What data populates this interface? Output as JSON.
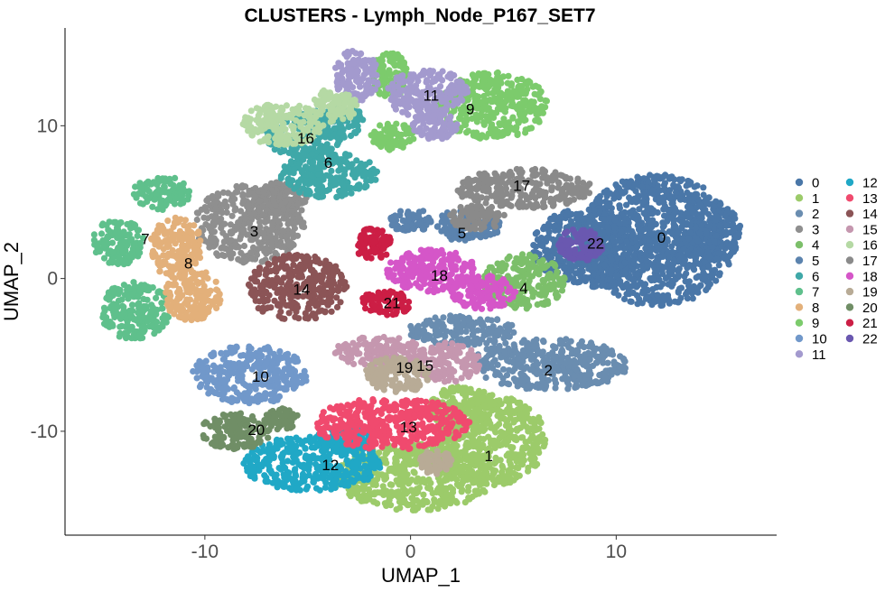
{
  "chart_data": {
    "type": "scatter",
    "title": "CLUSTERS - Lymph_Node_P167_SET7",
    "xlabel": "UMAP_1",
    "ylabel": "UMAP_2",
    "xlim": [
      -16.8,
      17.8
    ],
    "ylim": [
      -16.8,
      16.4
    ],
    "xticks": [
      -10,
      0,
      10
    ],
    "xtick_labels": [
      "-10",
      "0",
      "10"
    ],
    "yticks": [
      -10,
      0,
      10
    ],
    "ytick_labels": [
      "-10",
      "0",
      "10"
    ],
    "grid": false,
    "legend_position": "right",
    "clusters": [
      {
        "name": "0",
        "color": "#4A77A8",
        "label_x": 12.2,
        "label_y": 2.7,
        "regions": [
          [
            12.0,
            2.5,
            3.8,
            4.3
          ],
          [
            8.5,
            2.0,
            2.6,
            2.6
          ],
          [
            14.5,
            3.0,
            1.6,
            2.0
          ]
        ]
      },
      {
        "name": "1",
        "color": "#9CCB6A",
        "label_x": 3.8,
        "label_y": -11.6,
        "regions": [
          [
            4.0,
            -10.6,
            2.6,
            3.0
          ],
          [
            0.2,
            -13.0,
            3.8,
            2.2
          ],
          [
            2.5,
            -8.5,
            1.6,
            1.5
          ]
        ]
      },
      {
        "name": "2",
        "color": "#6A8DB0",
        "label_x": 6.7,
        "label_y": -6.0,
        "regions": [
          [
            6.8,
            -5.6,
            3.8,
            1.7
          ],
          [
            2.5,
            -3.4,
            2.6,
            1.0
          ]
        ]
      },
      {
        "name": "3",
        "color": "#8F8F8F",
        "label_x": -7.6,
        "label_y": 3.1,
        "regions": [
          [
            -7.8,
            3.6,
            2.7,
            2.6
          ],
          [
            -6.3,
            5.3,
            1.3,
            1.0
          ]
        ]
      },
      {
        "name": "4",
        "color": "#7CBF6A",
        "label_x": 5.5,
        "label_y": -0.6,
        "regions": [
          [
            5.5,
            -0.2,
            2.0,
            1.8
          ]
        ]
      },
      {
        "name": "5",
        "color": "#5B83AE",
        "label_x": 2.5,
        "label_y": 3.0,
        "regions": [
          [
            2.8,
            3.5,
            1.6,
            1.1
          ],
          [
            0.0,
            3.8,
            1.0,
            0.8
          ]
        ]
      },
      {
        "name": "6",
        "color": "#3FA8A8",
        "label_x": -4.0,
        "label_y": 7.6,
        "regions": [
          [
            -4.0,
            6.8,
            2.4,
            1.5
          ],
          [
            -5.2,
            9.5,
            2.0,
            1.5
          ],
          [
            -3.6,
            10.3,
            1.3,
            1.2
          ]
        ]
      },
      {
        "name": "7",
        "color": "#5FC08C",
        "label_x": -12.9,
        "label_y": 2.6,
        "regions": [
          [
            -14.2,
            2.4,
            1.3,
            1.5
          ],
          [
            -12.1,
            5.6,
            1.4,
            1.1
          ],
          [
            -13.4,
            -2.1,
            1.7,
            1.9
          ]
        ]
      },
      {
        "name": "8",
        "color": "#E3B07A",
        "label_x": -10.8,
        "label_y": 1.0,
        "regions": [
          [
            -11.4,
            2.0,
            1.3,
            2.0
          ],
          [
            -10.6,
            -1.1,
            1.4,
            1.7
          ]
        ]
      },
      {
        "name": "9",
        "color": "#7CCB6C",
        "label_x": 2.9,
        "label_y": 11.1,
        "regions": [
          [
            4.0,
            11.3,
            2.7,
            2.2
          ],
          [
            -0.9,
            9.3,
            1.1,
            0.9
          ],
          [
            -1.0,
            13.3,
            0.9,
            1.5
          ]
        ]
      },
      {
        "name": "10",
        "color": "#7198CA",
        "label_x": -7.3,
        "label_y": -6.4,
        "regions": [
          [
            -7.8,
            -6.3,
            2.8,
            1.9
          ]
        ]
      },
      {
        "name": "11",
        "color": "#A39ACE",
        "label_x": 1.0,
        "label_y": 12.0,
        "regions": [
          [
            0.8,
            12.1,
            2.0,
            1.6
          ],
          [
            -2.6,
            13.3,
            1.1,
            1.7
          ],
          [
            1.2,
            10.0,
            1.1,
            0.9
          ]
        ]
      },
      {
        "name": "12",
        "color": "#20A8C6",
        "label_x": -3.9,
        "label_y": -12.2,
        "regions": [
          [
            -4.8,
            -12.1,
            3.4,
            1.8
          ],
          [
            -3.2,
            -10.5,
            1.4,
            0.9
          ]
        ]
      },
      {
        "name": "13",
        "color": "#F04A6E",
        "label_x": -0.1,
        "label_y": -9.7,
        "regions": [
          [
            -0.9,
            -9.5,
            3.8,
            1.7
          ]
        ]
      },
      {
        "name": "14",
        "color": "#8B5456",
        "label_x": -5.3,
        "label_y": -0.7,
        "regions": [
          [
            -5.5,
            -0.6,
            2.4,
            2.2
          ]
        ]
      },
      {
        "name": "15",
        "color": "#C597AF",
        "label_x": 0.7,
        "label_y": -5.7,
        "regions": [
          [
            -1.5,
            -4.8,
            2.2,
            1.0
          ],
          [
            1.7,
            -5.5,
            1.7,
            1.3
          ]
        ]
      },
      {
        "name": "16",
        "color": "#B5D9A4",
        "label_x": -5.1,
        "label_y": 9.2,
        "regions": [
          [
            -6.2,
            10.1,
            2.0,
            1.4
          ],
          [
            -3.8,
            11.3,
            1.2,
            1.1
          ]
        ]
      },
      {
        "name": "17",
        "color": "#8A8A8A",
        "label_x": 5.4,
        "label_y": 6.1,
        "regions": [
          [
            5.5,
            5.9,
            3.3,
            1.3
          ],
          [
            3.2,
            4.0,
            1.4,
            0.8
          ]
        ]
      },
      {
        "name": "18",
        "color": "#D556C8",
        "label_x": 1.4,
        "label_y": 0.2,
        "regions": [
          [
            1.0,
            0.5,
            2.2,
            1.4
          ],
          [
            3.5,
            -0.9,
            1.6,
            1.1
          ]
        ]
      },
      {
        "name": "19",
        "color": "#B8AB96",
        "label_x": -0.3,
        "label_y": -5.8,
        "regions": [
          [
            -0.6,
            -6.3,
            1.6,
            1.2
          ],
          [
            1.2,
            -12.0,
            0.8,
            0.8
          ]
        ]
      },
      {
        "name": "20",
        "color": "#708E66",
        "label_x": -7.5,
        "label_y": -9.9,
        "regions": [
          [
            -8.5,
            -10.0,
            1.7,
            1.2
          ],
          [
            -6.3,
            -9.2,
            0.9,
            0.7
          ]
        ]
      },
      {
        "name": "21",
        "color": "#CC1E45",
        "label_x": -0.9,
        "label_y": -1.6,
        "regions": [
          [
            -1.2,
            -1.6,
            1.3,
            0.8
          ],
          [
            -1.8,
            2.2,
            0.9,
            1.1
          ]
        ]
      },
      {
        "name": "22",
        "color": "#6A58B0",
        "label_x": 9.0,
        "label_y": 2.3,
        "regions": [
          [
            8.3,
            2.2,
            1.1,
            1.1
          ]
        ]
      }
    ]
  }
}
